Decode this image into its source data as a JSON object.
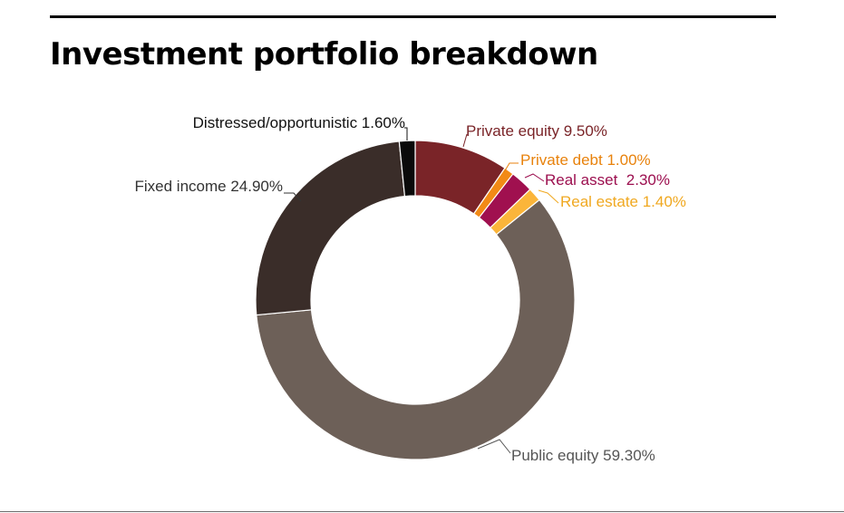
{
  "chart_data": {
    "type": "pie",
    "title": "Investment portfolio breakdown",
    "donut": true,
    "unit": "%",
    "slices": [
      {
        "name": "Private equity",
        "value": 9.5,
        "label": "Private equity 9.50%",
        "color": "#7a2428",
        "label_color": "#7a2428"
      },
      {
        "name": "Private debt",
        "value": 1.0,
        "label": "Private debt 1.00%",
        "color": "#f28a16",
        "label_color": "#e8820c"
      },
      {
        "name": "Real asset",
        "value": 2.3,
        "label": "Real asset  2.30%",
        "color": "#a0104f",
        "label_color": "#9c0f4f"
      },
      {
        "name": "Real estate",
        "value": 1.4,
        "label": "Real estate 1.40%",
        "color": "#fbb53a",
        "label_color": "#f0a820"
      },
      {
        "name": "Public equity",
        "value": 59.3,
        "label": "Public equity 59.30%",
        "color": "#6d6058",
        "label_color": "#555555"
      },
      {
        "name": "Fixed income",
        "value": 24.9,
        "label": "Fixed income 24.90%",
        "color": "#3a2d29",
        "label_color": "#333333"
      },
      {
        "name": "Distressed/opportunistic",
        "value": 1.6,
        "label": "Distressed/opportunistic 1.60%",
        "color": "#0a0a0a",
        "label_color": "#111111"
      }
    ]
  }
}
